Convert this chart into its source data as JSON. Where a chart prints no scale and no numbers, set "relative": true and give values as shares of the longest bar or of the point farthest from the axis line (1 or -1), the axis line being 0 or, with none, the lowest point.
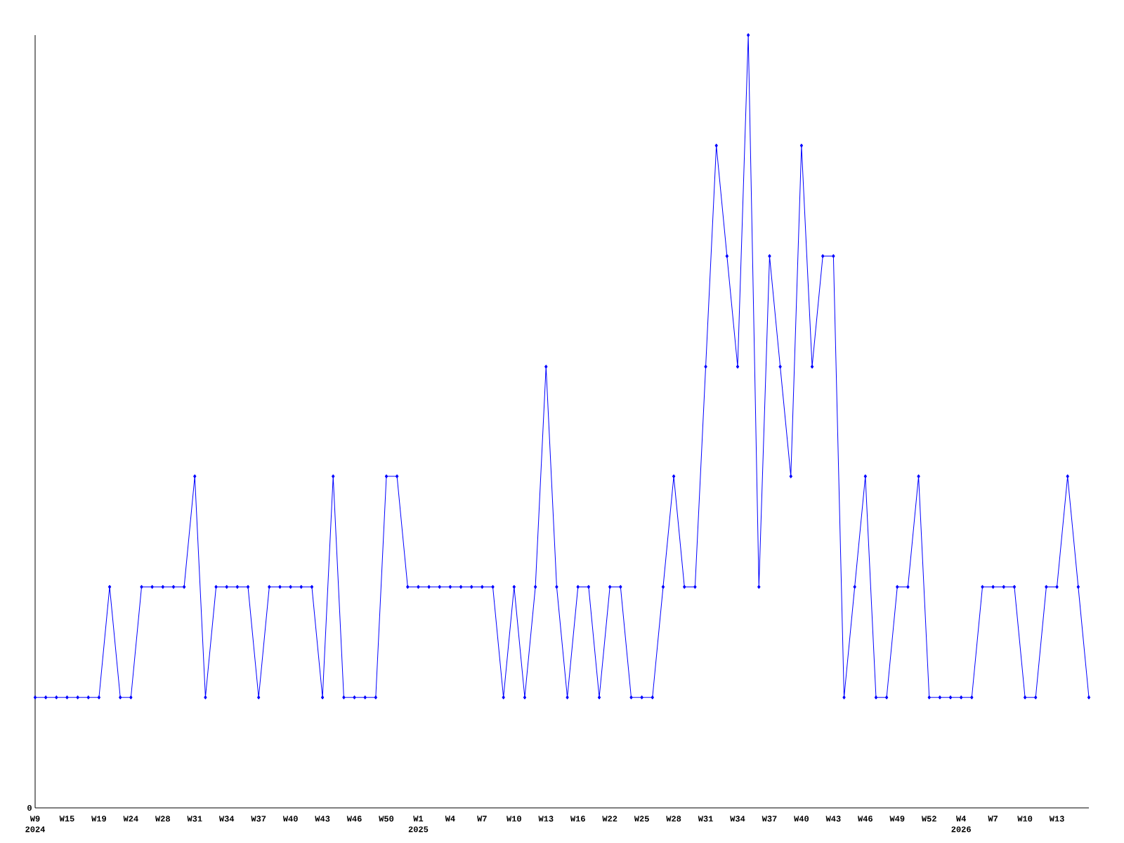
{
  "chart_data": {
    "type": "line",
    "relative": true,
    "color": "#0000ff",
    "marker": "diamond",
    "line_style": "solid",
    "categories": [
      "W9",
      null,
      null,
      "W15",
      null,
      null,
      "W19",
      null,
      null,
      "W24",
      null,
      null,
      "W28",
      null,
      null,
      "W31",
      null,
      null,
      "W34",
      null,
      null,
      "W37",
      null,
      null,
      "W40",
      null,
      null,
      "W43",
      null,
      null,
      "W46",
      null,
      null,
      "W50",
      null,
      null,
      "W1",
      null,
      null,
      "W4",
      null,
      null,
      "W7",
      null,
      null,
      "W10",
      null,
      null,
      "W13",
      null,
      null,
      "W16",
      null,
      null,
      "W22",
      null,
      null,
      "W25",
      null,
      null,
      "W28",
      null,
      null,
      "W31",
      null,
      null,
      "W34",
      null,
      null,
      "W37",
      null,
      null,
      "W40",
      null,
      null,
      "W43",
      null,
      null,
      "W46",
      null,
      null,
      "W49",
      null,
      null,
      "W52",
      null,
      null,
      "W4",
      null,
      null,
      "W7",
      null,
      null,
      "W10",
      null,
      null,
      "W13",
      null,
      null,
      null
    ],
    "values": [
      0.143,
      0.143,
      0.143,
      0.143,
      0.143,
      0.143,
      0.143,
      0.286,
      0.143,
      0.143,
      0.286,
      0.286,
      0.286,
      0.286,
      0.286,
      0.429,
      0.143,
      0.286,
      0.286,
      0.286,
      0.286,
      0.143,
      0.286,
      0.286,
      0.286,
      0.286,
      0.286,
      0.143,
      0.429,
      0.143,
      0.143,
      0.143,
      0.143,
      0.429,
      0.429,
      0.286,
      0.286,
      0.286,
      0.286,
      0.286,
      0.286,
      0.286,
      0.286,
      0.286,
      0.143,
      0.286,
      0.143,
      0.286,
      0.571,
      0.286,
      0.143,
      0.286,
      0.286,
      0.143,
      0.286,
      0.286,
      0.143,
      0.143,
      0.143,
      0.286,
      0.429,
      0.286,
      0.286,
      0.571,
      0.857,
      0.714,
      0.571,
      1,
      0.286,
      0.714,
      0.571,
      0.429,
      0.857,
      0.571,
      0.714,
      0.714,
      0.143,
      0.286,
      0.429,
      0.143,
      0.143,
      0.286,
      0.286,
      0.429,
      0.143,
      0.143,
      0.143,
      0.143,
      0.143,
      0.286,
      0.286,
      0.286,
      0.286,
      0.143,
      0.143,
      0.286,
      0.286,
      0.429,
      0.286,
      0.143
    ],
    "annotations": [
      "0",
      "2024",
      "2025",
      "2026"
    ]
  }
}
